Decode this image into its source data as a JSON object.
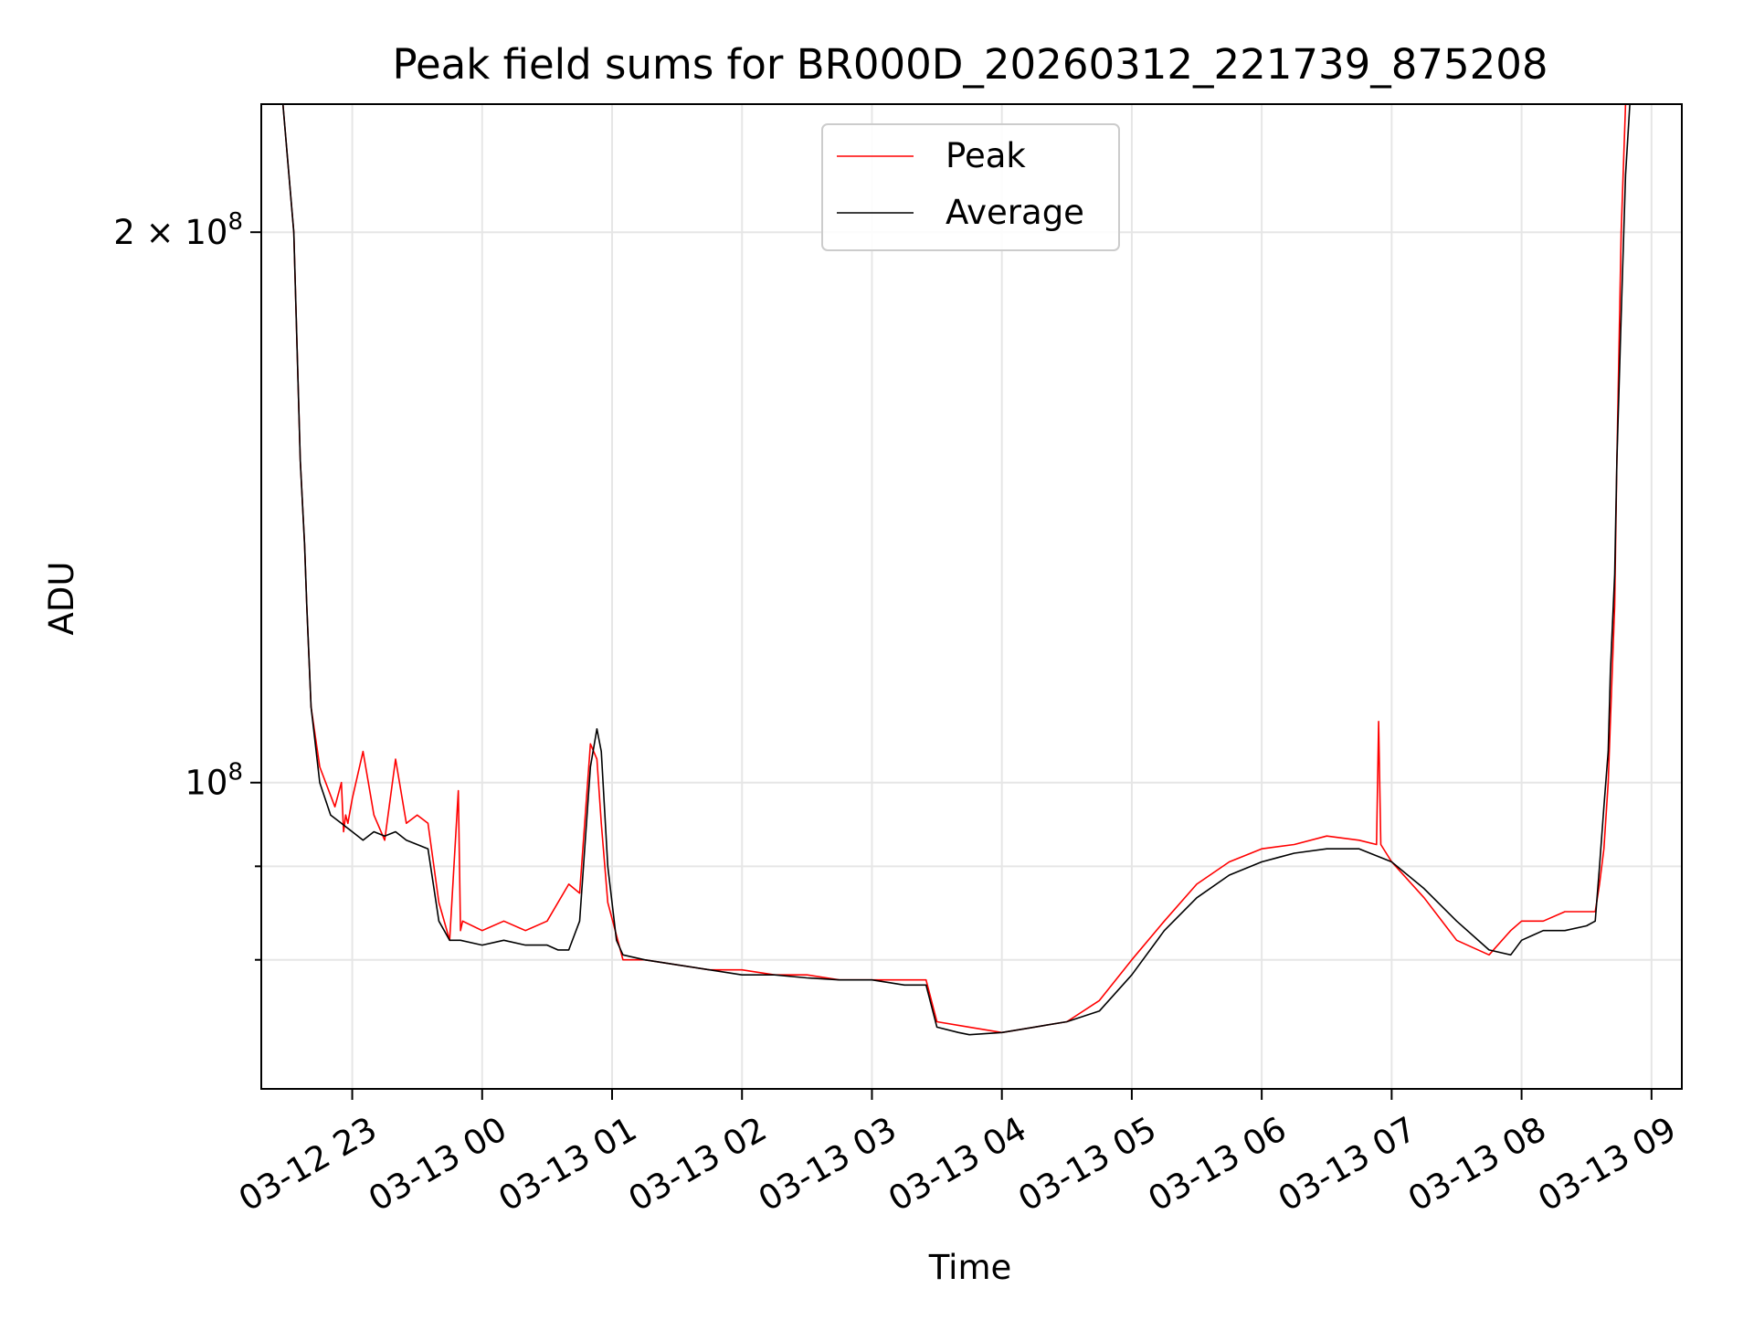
{
  "chart_data": {
    "type": "line",
    "title": "Peak field sums for BR000D_20260312_221739_875208",
    "xlabel": "Time",
    "ylabel": "ADU",
    "yscale": "log",
    "grid": true,
    "legend_position": "top-center",
    "xlim": [
      "2026-03-12 22:18",
      "2026-03-13 09:14"
    ],
    "ylim": [
      68000000,
      235000000
    ],
    "x_ticks": [
      {
        "value": "2026-03-12 23:00",
        "label": "03-12 23"
      },
      {
        "value": "2026-03-13 00:00",
        "label": "03-13 00"
      },
      {
        "value": "2026-03-13 01:00",
        "label": "03-13 01"
      },
      {
        "value": "2026-03-13 02:00",
        "label": "03-13 02"
      },
      {
        "value": "2026-03-13 03:00",
        "label": "03-13 03"
      },
      {
        "value": "2026-03-13 04:00",
        "label": "03-13 04"
      },
      {
        "value": "2026-03-13 05:00",
        "label": "03-13 05"
      },
      {
        "value": "2026-03-13 06:00",
        "label": "03-13 06"
      },
      {
        "value": "2026-03-13 07:00",
        "label": "03-13 07"
      },
      {
        "value": "2026-03-13 08:00",
        "label": "03-13 08"
      },
      {
        "value": "2026-03-13 09:00",
        "label": "03-13 09"
      }
    ],
    "y_major_ticks": [
      {
        "value": 100000000,
        "base": "10",
        "exp": "8",
        "mult": ""
      },
      {
        "value": 200000000,
        "base": "10",
        "exp": "8",
        "mult": "2 × "
      }
    ],
    "y_minor_ticks": [
      80000000,
      90000000
    ],
    "series": [
      {
        "name": "Peak",
        "color": "#ff0000",
        "x": [
          "2026-03-12 22:18",
          "2026-03-12 22:28",
          "2026-03-12 22:33",
          "2026-03-12 22:36",
          "2026-03-12 22:38",
          "2026-03-12 22:39",
          "2026-03-12 22:41",
          "2026-03-12 22:45",
          "2026-03-12 22:52",
          "2026-03-12 22:55",
          "2026-03-12 22:56",
          "2026-03-12 22:57",
          "2026-03-12 22:58",
          "2026-03-12 23:00",
          "2026-03-12 23:05",
          "2026-03-12 23:10",
          "2026-03-12 23:15",
          "2026-03-12 23:20",
          "2026-03-12 23:25",
          "2026-03-12 23:30",
          "2026-03-12 23:35",
          "2026-03-12 23:40",
          "2026-03-12 23:45",
          "2026-03-12 23:49",
          "2026-03-12 23:50",
          "2026-03-12 23:51",
          "2026-03-13 00:00",
          "2026-03-13 00:10",
          "2026-03-13 00:20",
          "2026-03-13 00:30",
          "2026-03-13 00:40",
          "2026-03-13 00:45",
          "2026-03-13 00:50",
          "2026-03-13 00:53",
          "2026-03-13 00:55",
          "2026-03-13 00:58",
          "2026-03-13 01:05",
          "2026-03-13 01:15",
          "2026-03-13 01:30",
          "2026-03-13 01:45",
          "2026-03-13 02:00",
          "2026-03-13 02:15",
          "2026-03-13 02:30",
          "2026-03-13 02:45",
          "2026-03-13 03:00",
          "2026-03-13 03:15",
          "2026-03-13 03:25",
          "2026-03-13 03:30",
          "2026-03-13 03:45",
          "2026-03-13 04:00",
          "2026-03-13 04:15",
          "2026-03-13 04:30",
          "2026-03-13 04:45",
          "2026-03-13 05:00",
          "2026-03-13 05:15",
          "2026-03-13 05:30",
          "2026-03-13 05:45",
          "2026-03-13 06:00",
          "2026-03-13 06:15",
          "2026-03-13 06:30",
          "2026-03-13 06:45",
          "2026-03-13 06:53",
          "2026-03-13 06:54",
          "2026-03-13 06:55",
          "2026-03-13 07:00",
          "2026-03-13 07:15",
          "2026-03-13 07:30",
          "2026-03-13 07:45",
          "2026-03-13 07:55",
          "2026-03-13 08:00",
          "2026-03-13 08:05",
          "2026-03-13 08:10",
          "2026-03-13 08:20",
          "2026-03-13 08:30",
          "2026-03-13 08:34",
          "2026-03-13 08:36",
          "2026-03-13 08:38",
          "2026-03-13 08:40",
          "2026-03-13 08:41",
          "2026-03-13 08:43",
          "2026-03-13 08:44",
          "2026-03-13 08:46",
          "2026-03-13 08:48",
          "2026-03-13 08:50",
          "2026-03-13 09:00"
        ],
        "values": [
          235000000,
          235000000,
          200000000,
          150000000,
          135000000,
          125000000,
          110000000,
          102000000,
          97000000,
          100000000,
          94000000,
          96000000,
          95000000,
          98000000,
          104000000,
          96000000,
          93000000,
          103000000,
          95000000,
          96000000,
          95000000,
          86000000,
          82000000,
          99000000,
          83000000,
          84000000,
          83000000,
          84000000,
          83000000,
          84000000,
          88000000,
          87000000,
          105000000,
          103000000,
          95000000,
          86000000,
          80000000,
          80000000,
          79500000,
          79000000,
          79000000,
          78500000,
          78500000,
          78000000,
          78000000,
          78000000,
          78000000,
          74000000,
          73500000,
          73000000,
          73500000,
          74000000,
          76000000,
          80000000,
          84000000,
          88000000,
          90500000,
          92000000,
          92500000,
          93500000,
          93000000,
          92500000,
          108000000,
          92500000,
          90500000,
          86500000,
          82000000,
          80500000,
          83000000,
          84000000,
          84000000,
          84000000,
          85000000,
          85000000,
          85000000,
          88000000,
          92000000,
          100000000,
          108000000,
          125000000,
          150000000,
          200000000,
          235000000,
          235000000,
          235000000
        ]
      },
      {
        "name": "Average",
        "color": "#000000",
        "x": [
          "2026-03-12 22:18",
          "2026-03-12 22:28",
          "2026-03-12 22:33",
          "2026-03-12 22:36",
          "2026-03-12 22:38",
          "2026-03-12 22:39",
          "2026-03-12 22:41",
          "2026-03-12 22:45",
          "2026-03-12 22:50",
          "2026-03-12 22:55",
          "2026-03-12 23:00",
          "2026-03-12 23:05",
          "2026-03-12 23:10",
          "2026-03-12 23:15",
          "2026-03-12 23:20",
          "2026-03-12 23:25",
          "2026-03-12 23:30",
          "2026-03-12 23:35",
          "2026-03-12 23:40",
          "2026-03-12 23:45",
          "2026-03-12 23:50",
          "2026-03-13 00:00",
          "2026-03-13 00:10",
          "2026-03-13 00:20",
          "2026-03-13 00:30",
          "2026-03-13 00:35",
          "2026-03-13 00:40",
          "2026-03-13 00:45",
          "2026-03-13 00:50",
          "2026-03-13 00:53",
          "2026-03-13 00:55",
          "2026-03-13 00:58",
          "2026-03-13 01:02",
          "2026-03-13 01:05",
          "2026-03-13 01:15",
          "2026-03-13 01:30",
          "2026-03-13 01:45",
          "2026-03-13 02:00",
          "2026-03-13 02:15",
          "2026-03-13 02:30",
          "2026-03-13 02:45",
          "2026-03-13 03:00",
          "2026-03-13 03:15",
          "2026-03-13 03:25",
          "2026-03-13 03:30",
          "2026-03-13 03:40",
          "2026-03-13 03:45",
          "2026-03-13 04:00",
          "2026-03-13 04:15",
          "2026-03-13 04:30",
          "2026-03-13 04:45",
          "2026-03-13 05:00",
          "2026-03-13 05:15",
          "2026-03-13 05:30",
          "2026-03-13 05:45",
          "2026-03-13 06:00",
          "2026-03-13 06:15",
          "2026-03-13 06:30",
          "2026-03-13 06:45",
          "2026-03-13 07:00",
          "2026-03-13 07:15",
          "2026-03-13 07:30",
          "2026-03-13 07:45",
          "2026-03-13 07:55",
          "2026-03-13 08:00",
          "2026-03-13 08:05",
          "2026-03-13 08:10",
          "2026-03-13 08:20",
          "2026-03-13 08:30",
          "2026-03-13 08:34",
          "2026-03-13 08:36",
          "2026-03-13 08:38",
          "2026-03-13 08:40",
          "2026-03-13 08:41",
          "2026-03-13 08:43",
          "2026-03-13 08:44",
          "2026-03-13 08:46",
          "2026-03-13 08:48",
          "2026-03-13 08:50",
          "2026-03-13 09:00"
        ],
        "values": [
          235000000,
          235000000,
          200000000,
          150000000,
          135000000,
          125000000,
          110000000,
          100000000,
          96000000,
          95000000,
          94000000,
          93000000,
          94000000,
          93500000,
          94000000,
          93000000,
          92500000,
          92000000,
          84000000,
          82000000,
          82000000,
          81500000,
          82000000,
          81500000,
          81500000,
          81000000,
          81000000,
          84000000,
          102000000,
          107000000,
          104000000,
          90000000,
          82000000,
          80500000,
          80000000,
          79500000,
          79000000,
          78500000,
          78500000,
          78200000,
          78000000,
          78000000,
          77500000,
          77500000,
          73500000,
          73000000,
          72800000,
          73000000,
          73500000,
          74000000,
          75000000,
          78500000,
          83000000,
          86500000,
          89000000,
          90500000,
          91500000,
          92000000,
          92000000,
          90500000,
          87500000,
          84000000,
          81000000,
          80500000,
          82000000,
          82500000,
          83000000,
          83000000,
          83500000,
          84000000,
          90000000,
          97000000,
          104000000,
          115000000,
          130000000,
          150000000,
          180000000,
          215000000,
          235000000,
          235000000
        ]
      }
    ]
  }
}
